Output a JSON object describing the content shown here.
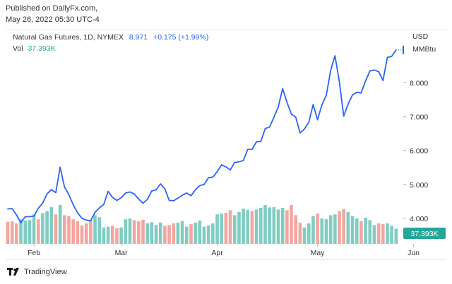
{
  "header": {
    "published": "Published on DailyFx.com,",
    "timestamp": "May 26, 2022 05:30 UTC-4"
  },
  "legend": {
    "symbol": "Natural Gas Futures, 1D, NYMEX",
    "price": "8.971",
    "change": "+0.175 (+1.99%)",
    "vol_label": "Vol",
    "vol_value": "37.393K"
  },
  "axis": {
    "currency": "USD",
    "unit": "MMBtu"
  },
  "footer": {
    "brand": "TradingView"
  },
  "colors": {
    "line": "#2962ff",
    "vol_up": "#7fcdc2",
    "vol_down": "#f4a5a0",
    "price_tag": "#2962ff",
    "vol_tag": "#26a69a"
  },
  "chart_data": {
    "type": "line",
    "title": "Natural Gas Futures, 1D, NYMEX",
    "y_ticks": [
      "4.000",
      "5.000",
      "6.000",
      "7.000",
      "8.000"
    ],
    "ylim": [
      3.25,
      9.55
    ],
    "x_tick_labels": [
      "Feb",
      "Mar",
      "Apr",
      "May",
      "Jun"
    ],
    "x_tick_index": [
      6,
      26,
      48,
      71,
      93
    ],
    "last_price_label": "8.971",
    "last_volume_label": "37.393K",
    "price": [
      4.28,
      4.29,
      4.1,
      3.87,
      4.05,
      4.05,
      4.07,
      4.3,
      4.45,
      4.72,
      4.85,
      4.76,
      5.51,
      4.93,
      4.7,
      4.4,
      4.17,
      4.0,
      3.95,
      3.93,
      4.18,
      4.31,
      4.41,
      4.8,
      4.62,
      4.53,
      4.61,
      4.75,
      4.78,
      4.72,
      4.57,
      4.45,
      4.56,
      4.81,
      4.84,
      5.02,
      4.87,
      4.53,
      4.52,
      4.6,
      4.68,
      4.75,
      4.67,
      4.84,
      4.97,
      5.0,
      5.2,
      5.22,
      5.38,
      5.58,
      5.52,
      5.43,
      5.65,
      5.67,
      5.71,
      6.04,
      6.04,
      6.26,
      6.27,
      6.65,
      6.7,
      6.98,
      7.29,
      7.83,
      7.42,
      7.08,
      6.99,
      6.52,
      6.64,
      6.84,
      7.36,
      6.91,
      7.35,
      7.63,
      8.37,
      8.8,
      8.03,
      7.02,
      7.37,
      7.64,
      7.72,
      7.7,
      8.06,
      8.35,
      8.38,
      8.33,
      8.07,
      8.75,
      8.78,
      8.97
    ],
    "volume": [
      54,
      55,
      50,
      60,
      57,
      58,
      72,
      60,
      75,
      80,
      90,
      72,
      95,
      70,
      68,
      60,
      55,
      45,
      50,
      58,
      70,
      65,
      40,
      42,
      44,
      38,
      40,
      60,
      62,
      58,
      55,
      59,
      50,
      53,
      46,
      52,
      44,
      46,
      50,
      52,
      56,
      42,
      48,
      52,
      57,
      42,
      45,
      50,
      72,
      74,
      76,
      82,
      70,
      78,
      86,
      83,
      80,
      84,
      88,
      95,
      89,
      90,
      84,
      88,
      82,
      95,
      70,
      52,
      40,
      50,
      68,
      74,
      62,
      60,
      70,
      72,
      80,
      85,
      78,
      68,
      62,
      56,
      64,
      58,
      46,
      50,
      48,
      50,
      44,
      37
    ],
    "volume_up": [
      false,
      false,
      false,
      true,
      true,
      true,
      true,
      false,
      true,
      true,
      true,
      false,
      true,
      false,
      false,
      false,
      false,
      false,
      false,
      false,
      true,
      true,
      true,
      true,
      false,
      false,
      true,
      true,
      true,
      false,
      false,
      false,
      true,
      true,
      true,
      true,
      false,
      false,
      false,
      true,
      true,
      true,
      false,
      true,
      true,
      true,
      true,
      true,
      true,
      true,
      false,
      false,
      true,
      true,
      true,
      true,
      false,
      true,
      true,
      true,
      true,
      true,
      true,
      true,
      false,
      false,
      false,
      false,
      true,
      true,
      true,
      false,
      true,
      true,
      true,
      true,
      false,
      false,
      true,
      true,
      true,
      false,
      true,
      true,
      true,
      false,
      false,
      true,
      true,
      true
    ]
  }
}
